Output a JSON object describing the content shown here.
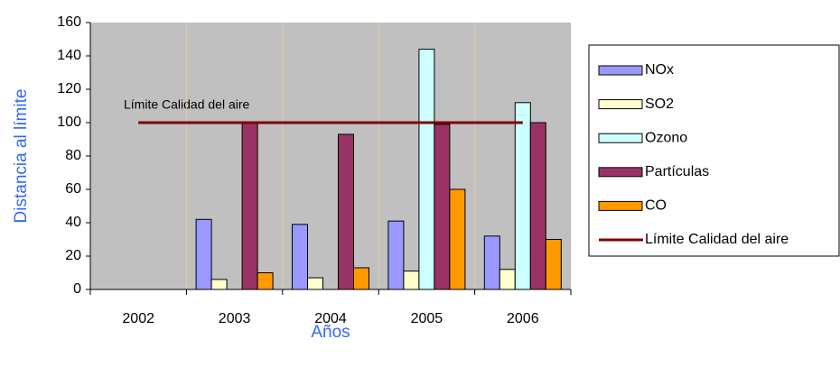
{
  "chart_data": {
    "type": "bar",
    "annotation": "Límite Calidad del aire",
    "x_label": "Años",
    "y_label": "Distancia al límite",
    "categories": [
      "2002",
      "2003",
      "2004",
      "2005",
      "2006"
    ],
    "series": [
      {
        "name": "NOx",
        "color": "#9999ff",
        "values": [
          null,
          42,
          39,
          41,
          32
        ]
      },
      {
        "name": "SO2",
        "color": "#ffffcc",
        "values": [
          null,
          6,
          7,
          11,
          12
        ]
      },
      {
        "name": "Ozono",
        "color": "#ccffff",
        "values": [
          null,
          null,
          null,
          144,
          112
        ]
      },
      {
        "name": "Partículas",
        "color": "#993366",
        "values": [
          null,
          100,
          93,
          99,
          100
        ]
      },
      {
        "name": "CO",
        "color": "#ff9900",
        "values": [
          null,
          10,
          13,
          60,
          30
        ]
      },
      {
        "name": "Límite Calidad del aire",
        "type": "line",
        "color": "#800000",
        "values": [
          100,
          100,
          100,
          100,
          100
        ]
      }
    ],
    "ylim": [
      0,
      160
    ],
    "yticks": [
      0,
      20,
      40,
      60,
      80,
      100,
      120,
      140,
      160
    ],
    "legend": "right"
  }
}
